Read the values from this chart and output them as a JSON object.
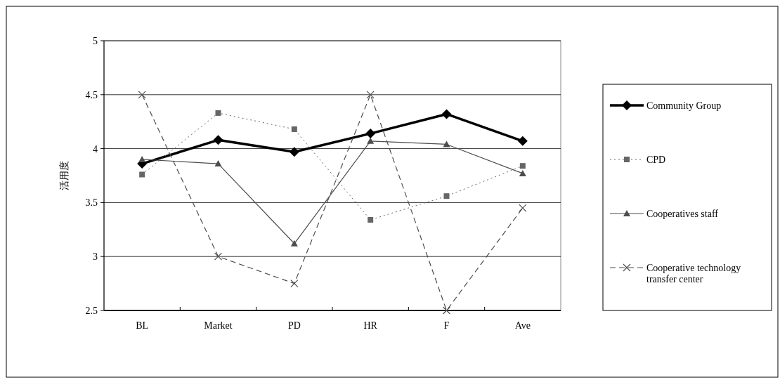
{
  "chart_data": {
    "type": "line",
    "ylabel": "活用度",
    "categories": [
      "BL",
      "Market",
      "PD",
      "HR",
      "F",
      "Ave"
    ],
    "series": [
      {
        "name": "Community Group",
        "color": "#000000",
        "marker": "diamond",
        "line_style": "solid",
        "values": [
          3.86,
          4.08,
          3.97,
          4.14,
          4.32,
          4.07
        ]
      },
      {
        "name": "CPD",
        "color": "#666666",
        "marker": "square",
        "line_style": "dotted",
        "values": [
          3.76,
          4.33,
          4.18,
          3.34,
          3.56,
          3.84
        ]
      },
      {
        "name": "Cooperatives staff",
        "color": "#4d4d4d",
        "marker": "triangle",
        "line_style": "solid",
        "values": [
          3.9,
          3.86,
          3.12,
          4.07,
          4.04,
          3.77
        ]
      },
      {
        "name": "Cooperative technology transfer center",
        "color": "#4d4d4d",
        "marker": "cross",
        "line_style": "dashed",
        "values": [
          4.5,
          3.0,
          2.75,
          4.5,
          2.5,
          3.45
        ]
      }
    ],
    "ylim": [
      2.5,
      5
    ],
    "yticks": [
      2.5,
      3,
      3.5,
      4,
      4.5,
      5
    ],
    "grid": "y",
    "legend": "right"
  }
}
